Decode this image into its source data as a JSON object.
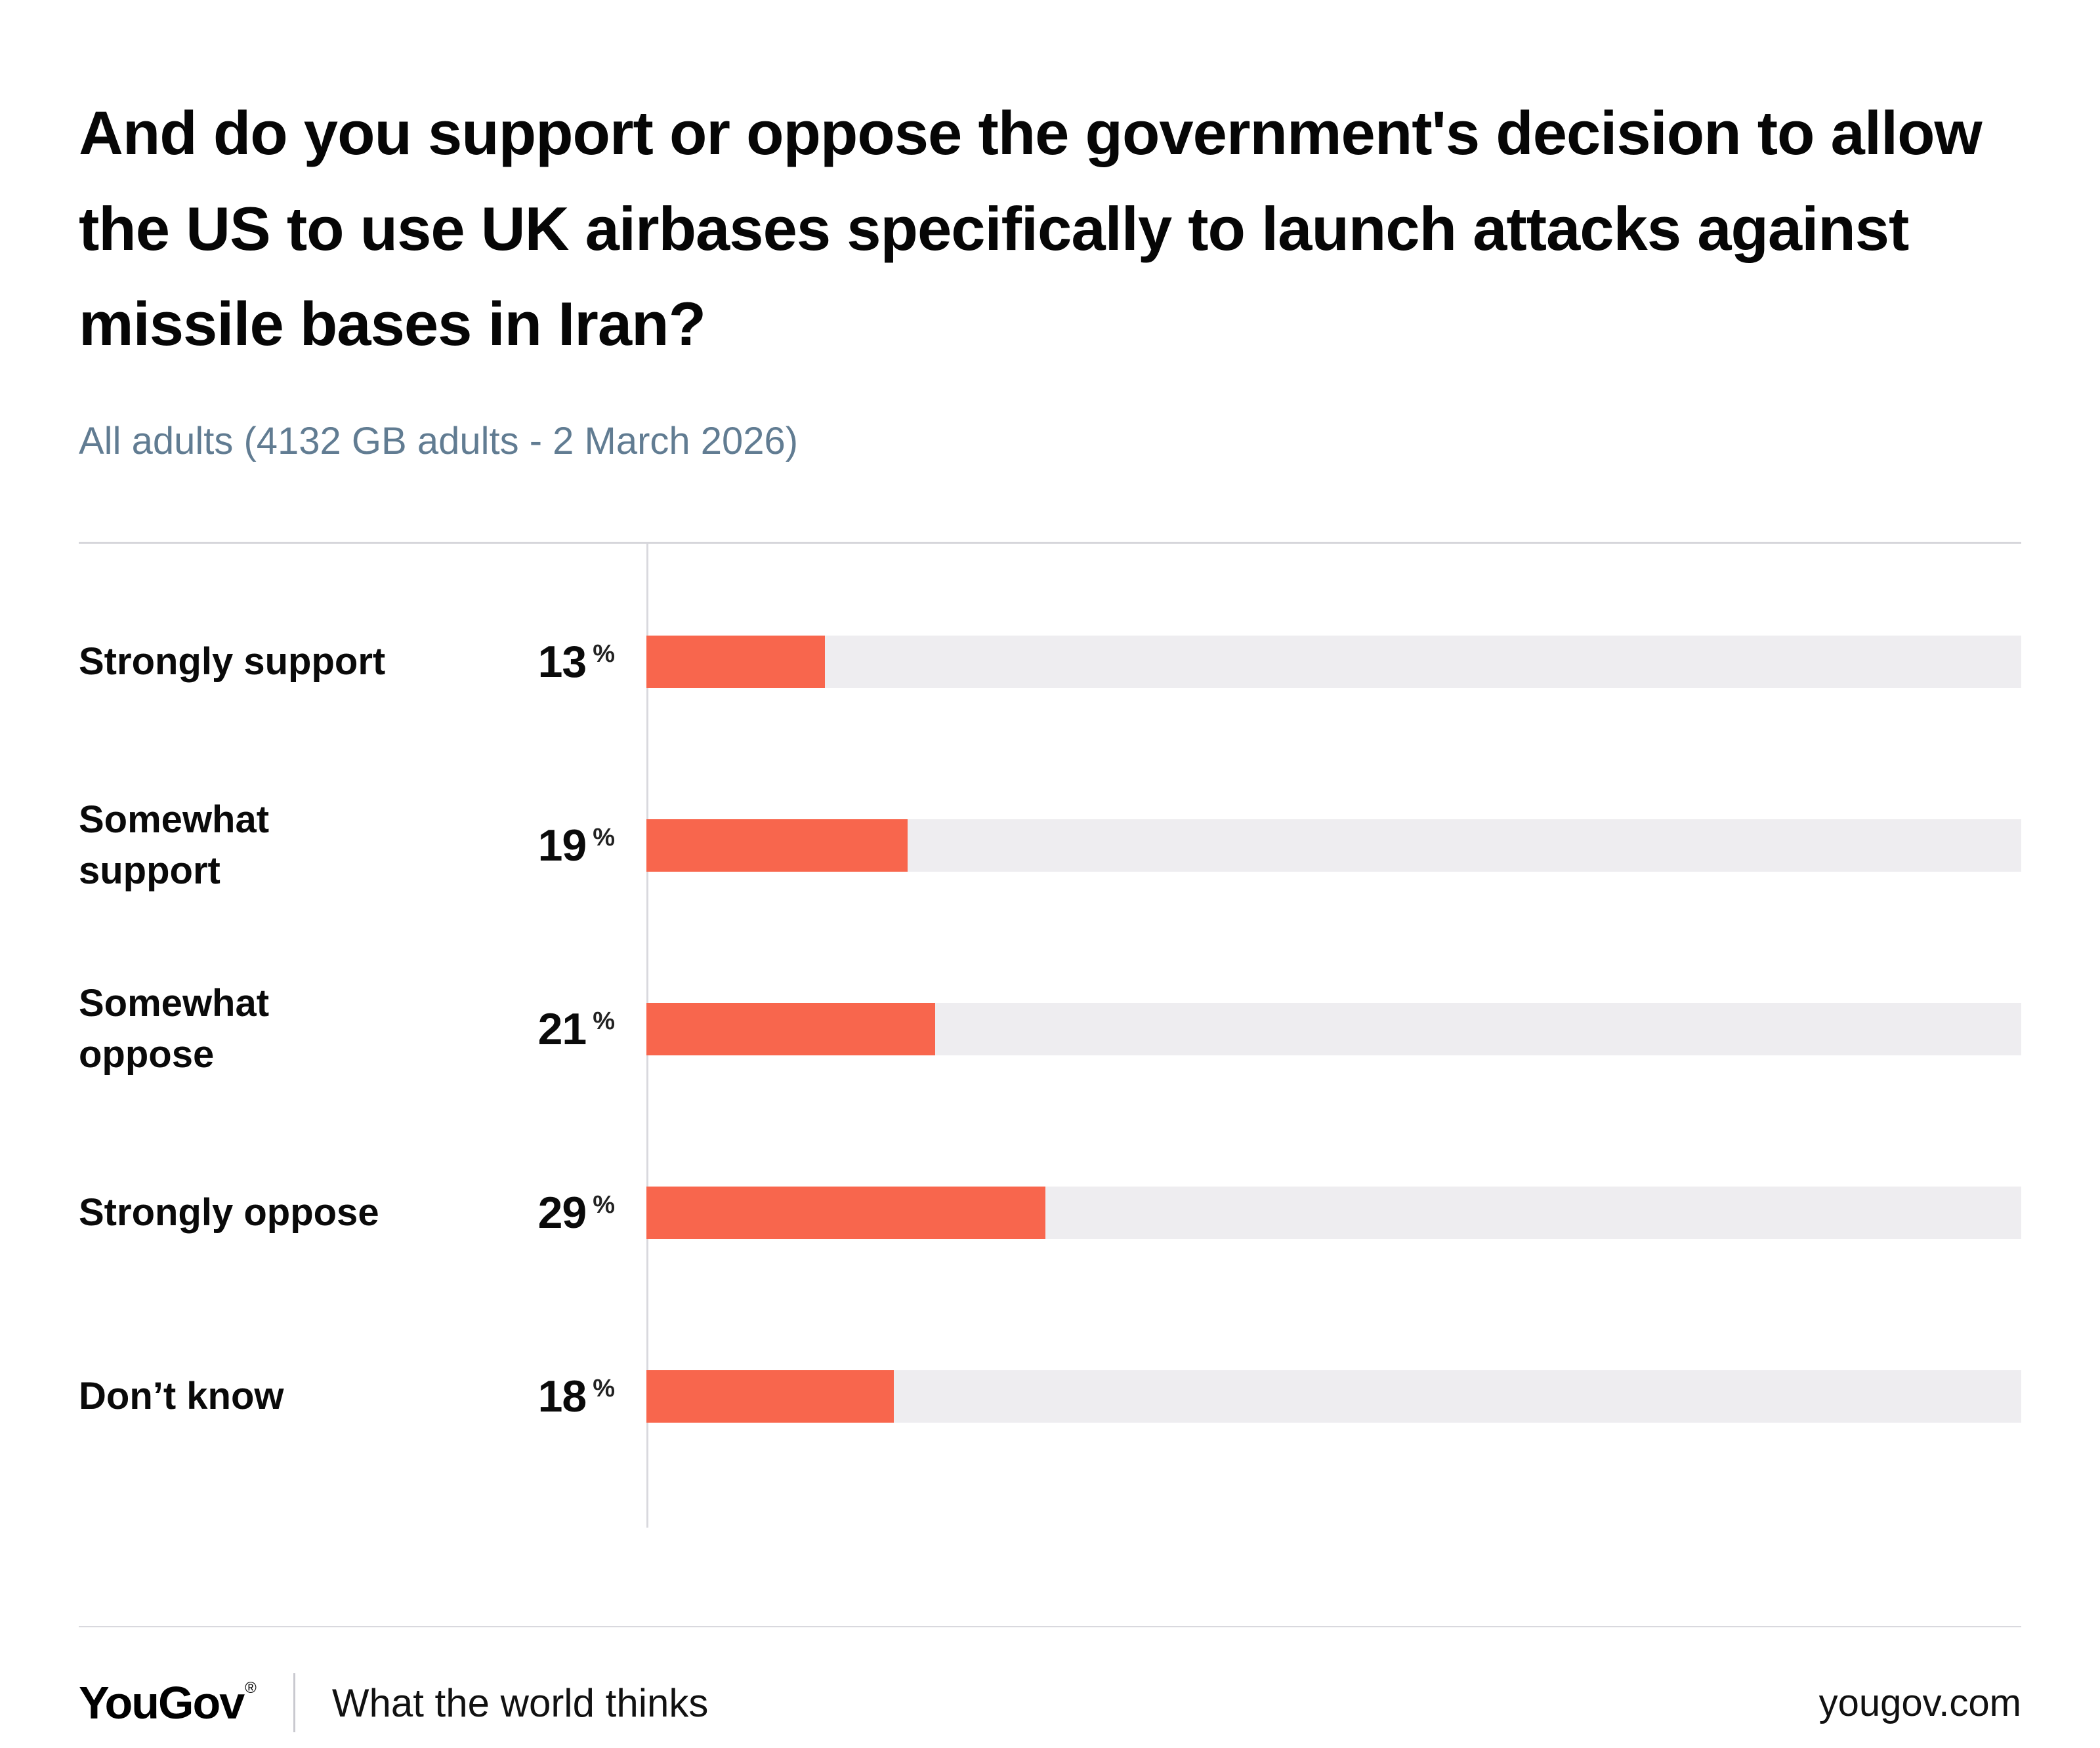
{
  "title": "And do you support or oppose the government's decision to allow the US to use UK airbases specifically to launch attacks against missile bases in Iran?",
  "subtitle": "All adults (4132 GB adults - 2 March 2026)",
  "chart_data": {
    "type": "bar",
    "orientation": "horizontal",
    "title": "And do you support or oppose the government's decision to allow the US to use UK airbases specifically to launch attacks against missile bases in Iran?",
    "subtitle": "All adults (4132 GB adults - 2 March 2026)",
    "categories": [
      "Strongly support",
      "Somewhat support",
      "Somewhat oppose",
      "Strongly oppose",
      "Don’t know"
    ],
    "label_lines": [
      [
        "Strongly support"
      ],
      [
        "Somewhat",
        "support"
      ],
      [
        "Somewhat",
        "oppose"
      ],
      [
        "Strongly oppose"
      ],
      [
        "Don’t know"
      ]
    ],
    "values": [
      13,
      19,
      21,
      29,
      18
    ],
    "unit": "%",
    "xlim": [
      0,
      100
    ],
    "grid": false,
    "legend": false,
    "bar_color": "#f8664d",
    "track_color": "#eeedf0"
  },
  "footer": {
    "logo": "YouGov",
    "registered": "®",
    "tagline": "What the world thinks",
    "site": "yougov.com"
  }
}
